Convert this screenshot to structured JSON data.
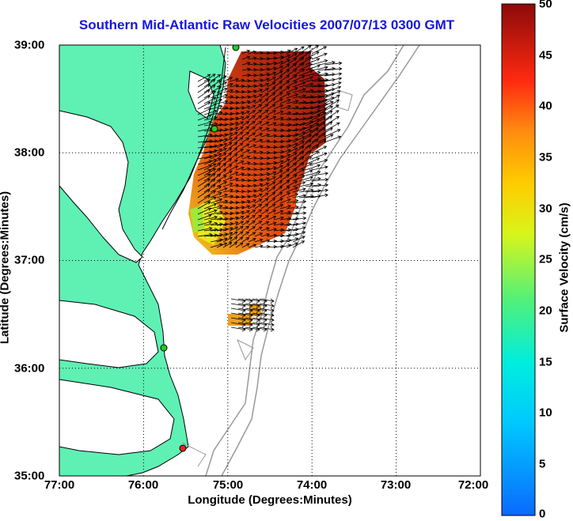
{
  "map": {
    "title": "Southern Mid-Atlantic Raw Velocities 2007/07/13 0300 GMT",
    "xlabel": "Longitude (Degrees:Minutes)",
    "ylabel": "Latitude (Degrees:Minutes)",
    "x_ticks": [
      "77:00",
      "76:00",
      "75:00",
      "74:00",
      "73:00",
      "72:00"
    ],
    "y_ticks": [
      "39:00",
      "38:00",
      "37:00",
      "36:00",
      "35:00"
    ],
    "land_color": "#5ff0b4",
    "colorbar": {
      "label": "Surface Velocity (cm/s)",
      "ticks": [
        "50",
        "45",
        "40",
        "35",
        "30",
        "25",
        "20",
        "15",
        "10",
        "5",
        "0"
      ],
      "range": [
        0,
        50
      ],
      "colormap": "jet"
    }
  },
  "chart_data": {
    "type": "heatmap",
    "title": "Southern Mid-Atlantic Raw Velocities 2007/07/13 0300 GMT",
    "xlabel": "Longitude (Degrees:Minutes)",
    "ylabel": "Latitude (Degrees:Minutes)",
    "xlim": [
      -77,
      -72
    ],
    "ylim": [
      35,
      39
    ],
    "grid": true,
    "colorbar_label": "Surface Velocity (cm/s)",
    "colorbar_range": [
      0,
      50
    ],
    "stations": [
      {
        "lon": -74.9,
        "lat": 38.98,
        "color": "#22cc22"
      },
      {
        "lon": -75.15,
        "lat": 38.22,
        "color": "#22cc22"
      },
      {
        "lon": -75.7,
        "lat": 36.18,
        "color": "#22cc22"
      },
      {
        "lon": -75.52,
        "lat": 35.25,
        "color": "#ee2222"
      }
    ]
  }
}
